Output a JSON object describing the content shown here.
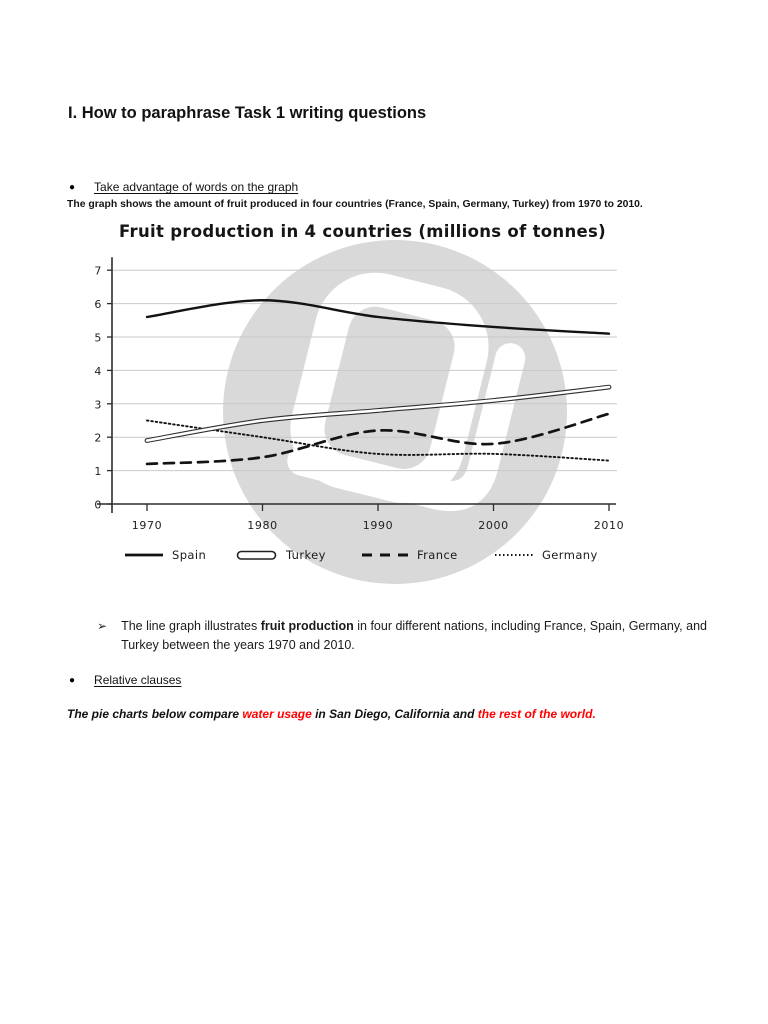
{
  "document": {
    "heading": "I. How to paraphrase Task 1 writing questions",
    "bullet_glyph": "●",
    "section1": {
      "bullet_label": "Take advantage of words on the graph",
      "caption_bold": "The graph shows the amount of fruit produced in four countries (France, Spain, Germany, Turkey) from 1970 to 2010."
    },
    "example": {
      "arrow": "➢",
      "before_bold": "The line graph illustrates ",
      "bold": "fruit production",
      "after_bold": " in four different nations, including France, Spain, Germany, and Turkey between the years 1970 and 2010."
    },
    "section2": {
      "bullet_label": "Relative clauses",
      "pie_sentence": {
        "part1": "The pie charts below compare ",
        "red1": "water usage",
        "part2": " in San Diego, California and ",
        "red2": "the rest of the world."
      }
    },
    "colors": {
      "red_text": "#ff0000",
      "watermark_gray": "#d9d9d9",
      "gridline": "#c9c9c9"
    }
  },
  "chart_data": {
    "type": "line",
    "title": "Fruit production in 4 countries (millions of tonnes)",
    "x": [
      "1970",
      "1980",
      "1990",
      "2000",
      "2010"
    ],
    "xlabel": "",
    "ylabel": "",
    "ylim": [
      0,
      7
    ],
    "y_ticks": [
      0,
      1,
      2,
      3,
      4,
      5,
      6,
      7
    ],
    "grid": true,
    "legend_position": "bottom",
    "series": [
      {
        "name": "Spain",
        "line_style": "solid",
        "values": [
          5.6,
          6.1,
          5.6,
          5.3,
          5.1
        ]
      },
      {
        "name": "Turkey",
        "line_style": "double-outline",
        "values": [
          1.9,
          2.5,
          2.8,
          3.1,
          3.5
        ]
      },
      {
        "name": "France",
        "line_style": "dashed",
        "values": [
          1.2,
          1.4,
          2.2,
          1.8,
          2.7
        ]
      },
      {
        "name": "Germany",
        "line_style": "dotted",
        "values": [
          2.5,
          2.0,
          1.5,
          1.5,
          1.3
        ]
      }
    ]
  }
}
